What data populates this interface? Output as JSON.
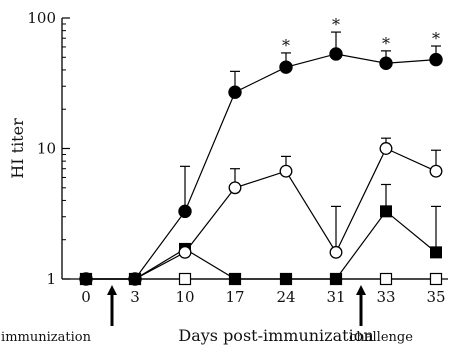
{
  "chart_data": {
    "type": "line",
    "ylabel": "HI titer",
    "xlabel": "Days  post-immunization",
    "yscale": "log",
    "ylim": [
      1,
      100
    ],
    "y_ticks": [
      "1",
      "10",
      "100"
    ],
    "categories": [
      "0",
      "3",
      "10",
      "17",
      "24",
      "31",
      "33",
      "35"
    ],
    "series": [
      {
        "marker": "filled-circle",
        "values": [
          1,
          1,
          3.3,
          27,
          42,
          53,
          45,
          48
        ],
        "error": [
          0,
          0,
          4.0,
          12,
          12,
          25,
          11,
          13
        ]
      },
      {
        "marker": "open-circle",
        "values": [
          1,
          1,
          1.6,
          5.0,
          6.7,
          1.6,
          10,
          6.7
        ],
        "error": [
          0,
          0,
          0,
          2.0,
          2.0,
          2.0,
          2.0,
          3.0
        ]
      },
      {
        "marker": "filled-square",
        "values": [
          1,
          1,
          1.7,
          1,
          1,
          1,
          3.3,
          1.6
        ],
        "error": [
          0,
          0,
          0,
          0,
          0,
          0,
          2.0,
          2.0
        ]
      },
      {
        "marker": "open-square",
        "values": [
          1,
          1,
          1,
          1,
          1,
          1,
          1,
          1
        ],
        "error": [
          0,
          0,
          0,
          0,
          0,
          0,
          0,
          0
        ]
      }
    ],
    "significance_marks": [
      {
        "category": "24",
        "label": "*"
      },
      {
        "category": "31",
        "label": "*"
      },
      {
        "category": "33",
        "label": "*"
      },
      {
        "category": "35",
        "label": "*"
      }
    ],
    "annotations": [
      {
        "text": "immunization",
        "after_category": "0"
      },
      {
        "text": "challenge",
        "after_category": "31"
      }
    ]
  }
}
